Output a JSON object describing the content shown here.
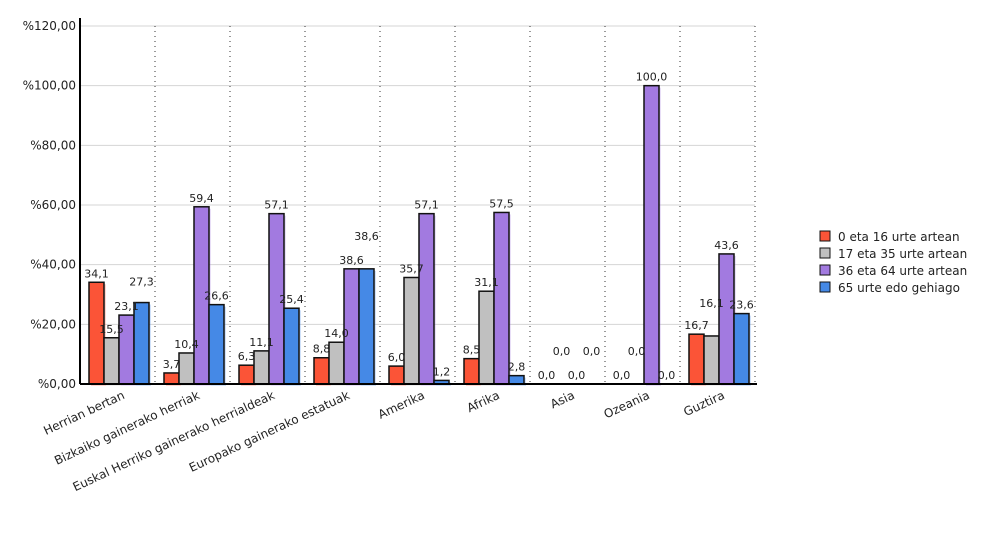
{
  "chart_data": {
    "type": "bar",
    "title": "",
    "xlabel": "",
    "ylabel": "",
    "ylim": [
      0,
      120
    ],
    "yticks": [
      "%0,00",
      "%20,00",
      "%40,00",
      "%60,00",
      "%80,00",
      "%100,00",
      "%120,00"
    ],
    "grid": true,
    "legend_position": "right",
    "categories": [
      "Herrian bertan",
      "Bizkaiko gainerako herriak",
      "Euskal Herriko gainerako herrialdeak",
      "Europako gainerako estatuak",
      "Amerika",
      "Afrika",
      "Asia",
      "Ozeania",
      "Guztira"
    ],
    "series": [
      {
        "name": "0 eta 16 urte artean",
        "color": "#fb5437",
        "values": [
          34.1,
          3.7,
          6.3,
          8.8,
          6.0,
          8.5,
          0.0,
          0.0,
          16.7
        ],
        "labels": [
          "34,1",
          "3,7",
          "6,3",
          "8,8",
          "6,0",
          "8,5",
          "0,0",
          "0,0",
          "16,7"
        ]
      },
      {
        "name": "17 eta 35 urte artean",
        "color": "#c0c0c0",
        "values": [
          15.5,
          10.4,
          11.1,
          14.0,
          35.7,
          31.1,
          0.0,
          0.0,
          16.1
        ],
        "labels": [
          "15,5",
          "10,4",
          "11,1",
          "14,0",
          "35,7",
          "31,1",
          "0,0",
          "0,0",
          "16,1"
        ]
      },
      {
        "name": "36 eta 64 urte artean",
        "color": "#a27ae0",
        "values": [
          23.1,
          59.4,
          57.1,
          38.6,
          57.1,
          57.5,
          0.0,
          100.0,
          43.6
        ],
        "labels": [
          "23,1",
          "59,4",
          "57,1",
          "38,6",
          "57,1",
          "57,5",
          "0,0",
          "100,0",
          "43,6"
        ]
      },
      {
        "name": "65 urte edo gehiago",
        "color": "#4589e6",
        "values": [
          27.3,
          26.6,
          25.4,
          38.6,
          1.2,
          2.8,
          0.0,
          0.0,
          23.6
        ],
        "labels": [
          "27,3",
          "26,6",
          "25,4",
          "38,6",
          "1,2",
          "2,8",
          "0,0",
          "0,0",
          "23,6"
        ]
      }
    ]
  }
}
